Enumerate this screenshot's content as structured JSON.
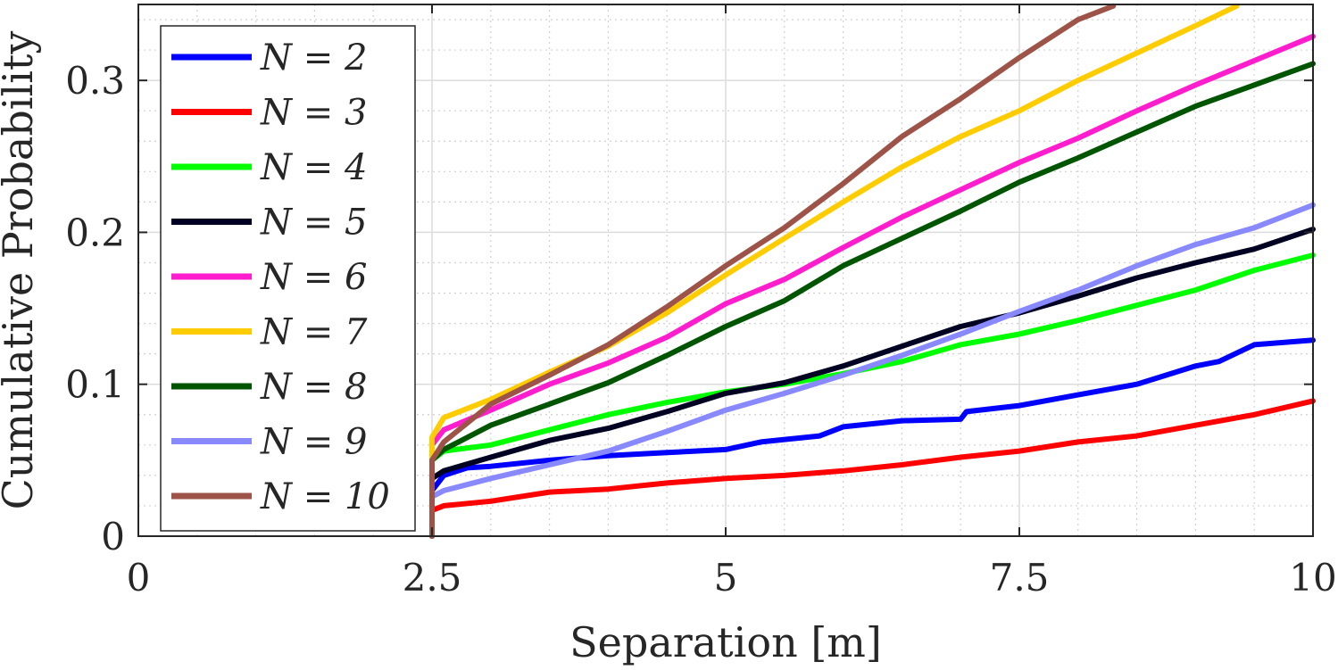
{
  "chart_data": {
    "type": "line",
    "title": "",
    "xlabel": "Separation [m]",
    "ylabel": "Cumulative Probability",
    "xlim": [
      0,
      10
    ],
    "ylim": [
      0,
      0.35
    ],
    "grid": true,
    "minor_grid": true,
    "legend_position": "top-left",
    "x_ticks": [
      0,
      2.5,
      5,
      7.5,
      10
    ],
    "x_tick_labels": [
      "0",
      "2.5",
      "5",
      "7.5",
      "10"
    ],
    "y_ticks": [
      0,
      0.1,
      0.2,
      0.3
    ],
    "y_tick_labels": [
      "0",
      "0.1",
      "0.2",
      "0.3"
    ],
    "series": [
      {
        "name": "N = 2",
        "color": "#0000ff",
        "x": [
          2.5,
          2.5,
          2.6,
          2.8,
          3.0,
          3.5,
          4.0,
          4.5,
          5.0,
          5.3,
          5.8,
          6.0,
          6.5,
          7.0,
          7.05,
          7.5,
          8.0,
          8.5,
          9.0,
          9.2,
          9.5,
          10.0
        ],
        "y": [
          0.0,
          0.03,
          0.04,
          0.045,
          0.046,
          0.05,
          0.053,
          0.055,
          0.057,
          0.062,
          0.066,
          0.072,
          0.076,
          0.077,
          0.082,
          0.086,
          0.093,
          0.1,
          0.112,
          0.115,
          0.126,
          0.129
        ]
      },
      {
        "name": "N = 3",
        "color": "#ff0000",
        "x": [
          2.5,
          2.5,
          2.6,
          3.0,
          3.5,
          4.0,
          4.5,
          5.0,
          5.5,
          6.0,
          6.5,
          7.0,
          7.5,
          8.0,
          8.5,
          9.0,
          9.5,
          10.0
        ],
        "y": [
          0.0,
          0.017,
          0.02,
          0.023,
          0.029,
          0.031,
          0.035,
          0.038,
          0.04,
          0.043,
          0.047,
          0.052,
          0.056,
          0.062,
          0.066,
          0.073,
          0.08,
          0.089
        ]
      },
      {
        "name": "N = 4",
        "color": "#00ff00",
        "x": [
          2.5,
          2.5,
          2.6,
          3.0,
          3.5,
          4.0,
          4.5,
          5.0,
          5.5,
          6.0,
          6.5,
          7.0,
          7.5,
          8.0,
          8.5,
          9.0,
          9.5,
          10.0
        ],
        "y": [
          0.0,
          0.05,
          0.056,
          0.06,
          0.07,
          0.08,
          0.088,
          0.095,
          0.1,
          0.107,
          0.115,
          0.126,
          0.133,
          0.142,
          0.152,
          0.162,
          0.175,
          0.185
        ]
      },
      {
        "name": "N = 5",
        "color": "#000022",
        "x": [
          2.5,
          2.5,
          2.6,
          3.0,
          3.5,
          4.0,
          4.5,
          5.0,
          5.5,
          6.0,
          6.5,
          7.0,
          7.5,
          8.0,
          8.5,
          9.0,
          9.5,
          10.0
        ],
        "y": [
          0.0,
          0.038,
          0.043,
          0.052,
          0.063,
          0.071,
          0.082,
          0.094,
          0.101,
          0.112,
          0.125,
          0.138,
          0.147,
          0.158,
          0.17,
          0.18,
          0.189,
          0.202
        ]
      },
      {
        "name": "N = 6",
        "color": "#ff1dce",
        "x": [
          2.5,
          2.5,
          2.6,
          3.0,
          3.5,
          4.0,
          4.5,
          5.0,
          5.5,
          6.0,
          6.5,
          7.0,
          7.5,
          8.0,
          8.5,
          9.0,
          9.5,
          10.0
        ],
        "y": [
          0.0,
          0.06,
          0.07,
          0.083,
          0.1,
          0.114,
          0.131,
          0.153,
          0.169,
          0.19,
          0.21,
          0.228,
          0.246,
          0.262,
          0.28,
          0.297,
          0.313,
          0.329
        ]
      },
      {
        "name": "N = 7",
        "color": "#ffcc00",
        "x": [
          2.5,
          2.5,
          2.6,
          3.0,
          3.5,
          4.0,
          4.5,
          5.0,
          5.5,
          6.0,
          6.5,
          7.0,
          7.5,
          8.0,
          8.5,
          9.0,
          9.35
        ],
        "y": [
          0.0,
          0.065,
          0.078,
          0.09,
          0.108,
          0.125,
          0.147,
          0.172,
          0.196,
          0.22,
          0.243,
          0.263,
          0.28,
          0.3,
          0.318,
          0.336,
          0.349
        ]
      },
      {
        "name": "N = 8",
        "color": "#005500",
        "x": [
          2.5,
          2.5,
          2.6,
          3.0,
          3.5,
          4.0,
          4.5,
          5.0,
          5.5,
          6.0,
          6.5,
          7.0,
          7.5,
          8.0,
          8.5,
          9.0,
          9.5,
          10.0
        ],
        "y": [
          0.0,
          0.05,
          0.057,
          0.073,
          0.087,
          0.101,
          0.119,
          0.138,
          0.155,
          0.178,
          0.196,
          0.214,
          0.233,
          0.249,
          0.266,
          0.283,
          0.297,
          0.311
        ]
      },
      {
        "name": "N = 9",
        "color": "#8888ff",
        "x": [
          2.5,
          2.5,
          2.6,
          3.0,
          3.5,
          4.0,
          4.5,
          5.0,
          5.5,
          6.0,
          6.5,
          7.0,
          7.5,
          8.0,
          8.5,
          9.0,
          9.5,
          10.0
        ],
        "y": [
          0.0,
          0.026,
          0.03,
          0.038,
          0.047,
          0.056,
          0.069,
          0.083,
          0.094,
          0.106,
          0.119,
          0.133,
          0.148,
          0.162,
          0.178,
          0.192,
          0.203,
          0.218
        ]
      },
      {
        "name": "N = 10",
        "color": "#9e5348",
        "x": [
          2.5,
          2.5,
          2.6,
          3.0,
          3.5,
          4.0,
          4.5,
          5.0,
          5.5,
          6.0,
          6.5,
          7.0,
          7.5,
          8.0,
          8.3
        ],
        "y": [
          0.0,
          0.05,
          0.062,
          0.087,
          0.106,
          0.126,
          0.151,
          0.178,
          0.203,
          0.232,
          0.263,
          0.288,
          0.315,
          0.34,
          0.349
        ]
      }
    ]
  }
}
